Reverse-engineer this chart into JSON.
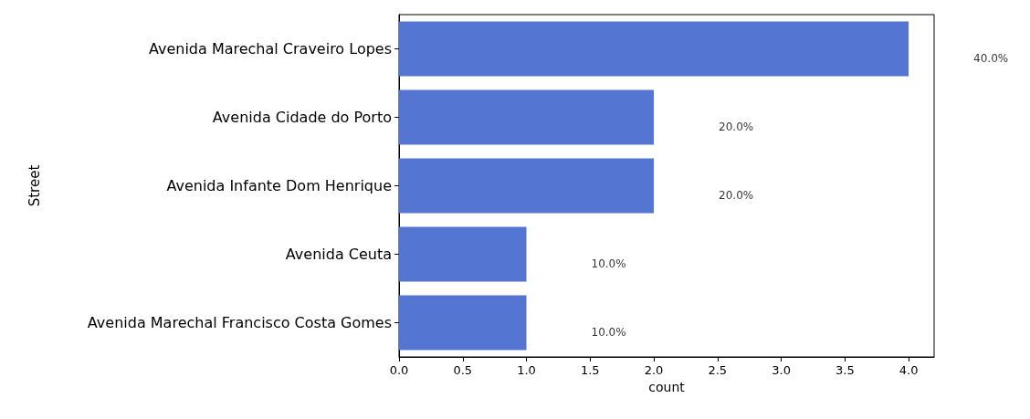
{
  "chart_data": {
    "type": "bar",
    "orientation": "horizontal",
    "xlabel": "count",
    "ylabel": "Street",
    "categories": [
      "Avenida Marechal Craveiro Lopes",
      "Avenida Cidade do Porto",
      "Avenida Infante Dom Henrique",
      "Avenida Ceuta",
      "Avenida Marechal Francisco Costa Gomes"
    ],
    "values": [
      4,
      2,
      2,
      1,
      1
    ],
    "annotations": [
      "40.0%",
      "20.0%",
      "20.0%",
      "10.0%",
      "10.0%"
    ],
    "color": "#5475d1",
    "xlim": [
      0,
      4.2
    ],
    "xticks": [
      {
        "value": 0,
        "label": "0.0"
      },
      {
        "value": 0.5,
        "label": "0.5"
      },
      {
        "value": 1,
        "label": "1.0"
      },
      {
        "value": 1.5,
        "label": "1.5"
      },
      {
        "value": 2,
        "label": "2.0"
      },
      {
        "value": 2.5,
        "label": "2.5"
      },
      {
        "value": 3,
        "label": "3.0"
      },
      {
        "value": 3.5,
        "label": "3.5"
      },
      {
        "value": 4,
        "label": "4.0"
      }
    ],
    "grid": false
  }
}
